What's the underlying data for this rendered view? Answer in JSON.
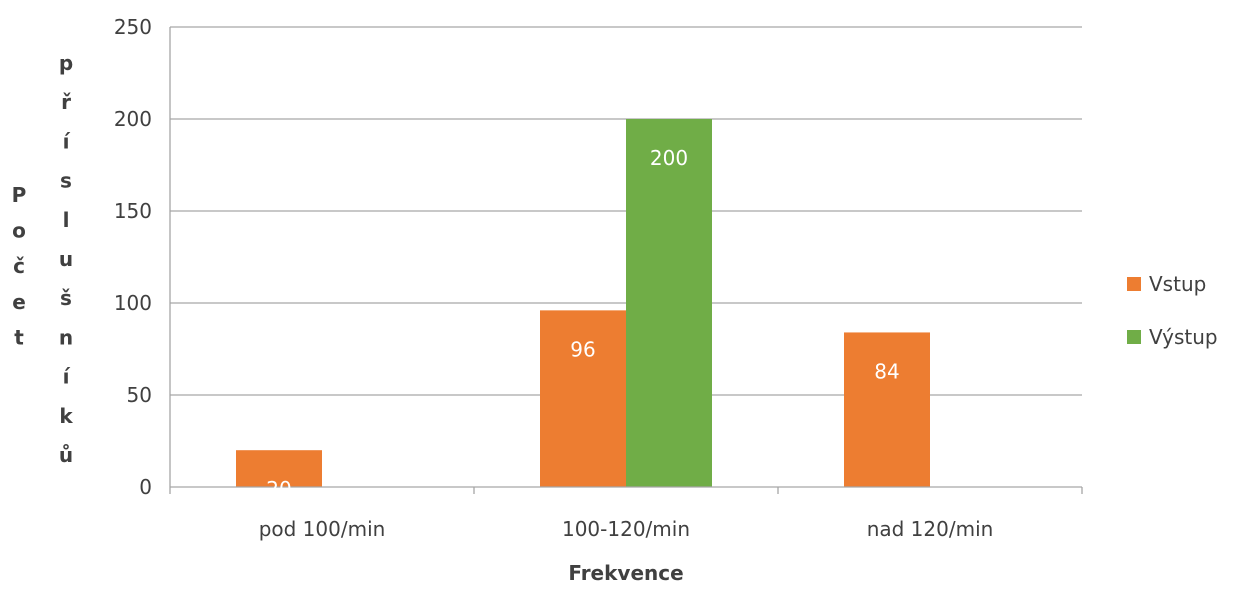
{
  "chart_data": {
    "type": "bar",
    "categories": [
      "pod 100/min",
      "100-120/min",
      "nad 120/min"
    ],
    "series": [
      {
        "name": "Vstup",
        "values": [
          20,
          96,
          84
        ],
        "color": "#ED7D31"
      },
      {
        "name": "Výstup",
        "values": [
          null,
          200,
          null
        ],
        "color": "#70AD47"
      }
    ],
    "xlabel": "Frekvence",
    "ylabel_col1": [
      "P",
      "o",
      "č",
      "e",
      "t"
    ],
    "ylabel_col2": [
      "p",
      "ř",
      "í",
      "s",
      "l",
      "u",
      "š",
      "n",
      "í",
      "k",
      "ů"
    ],
    "ylim": [
      0,
      250
    ],
    "yticks": [
      0,
      50,
      100,
      150,
      200,
      250
    ],
    "grid": true,
    "legend_position": "right",
    "data_labels": true
  }
}
